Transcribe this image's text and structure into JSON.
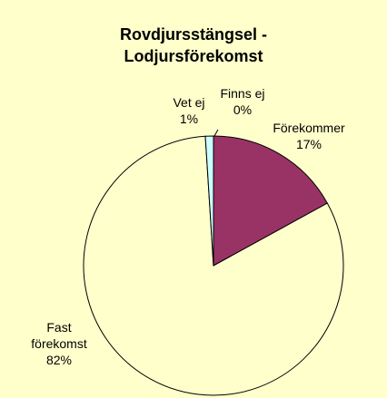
{
  "chart_data": {
    "type": "pie",
    "title": "Rovdjursstängsel - Lodjursförekomst",
    "categories": [
      "Förekommer",
      "Fast förekomst",
      "Vet ej",
      "Finns ej"
    ],
    "values": [
      17,
      82,
      1,
      0
    ],
    "value_labels": [
      "17%",
      "82%",
      "1%",
      "0%"
    ],
    "colors": [
      "#993366",
      "#ffffcc",
      "#ccffff",
      "#ffffff"
    ]
  }
}
